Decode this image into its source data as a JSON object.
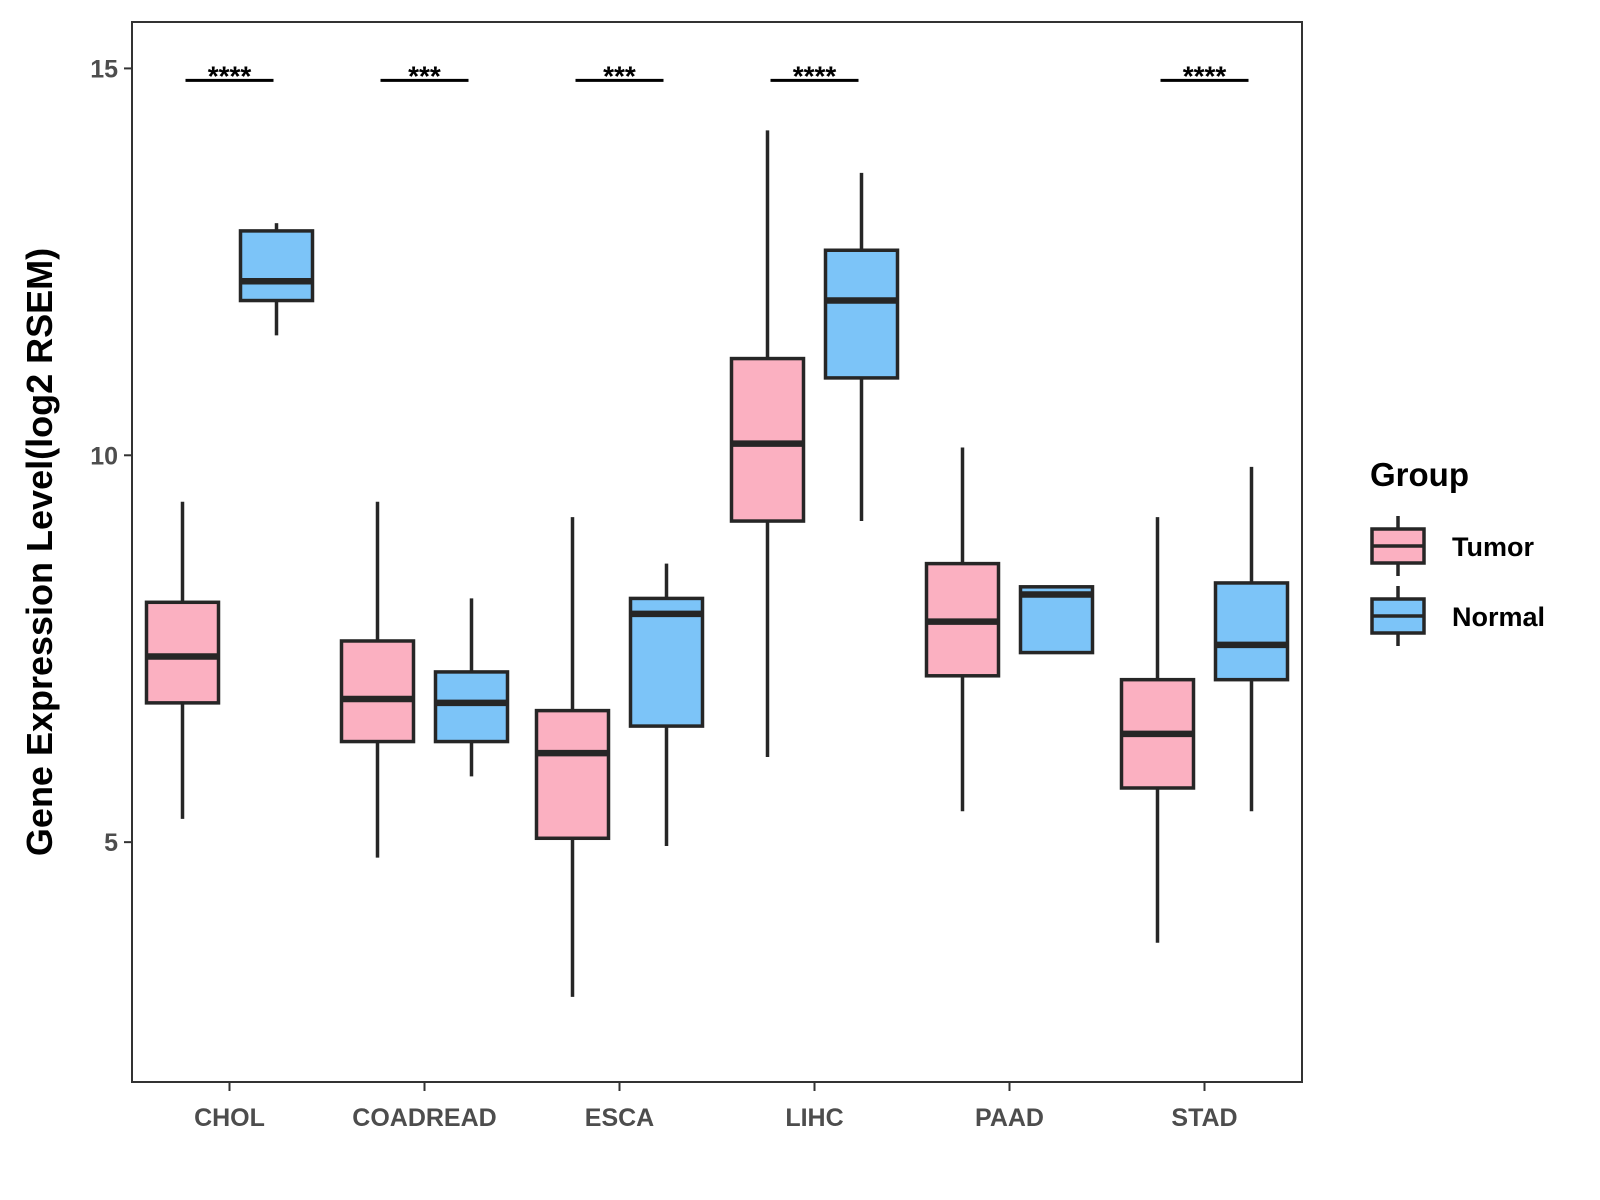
{
  "chart_data": {
    "type": "boxplot",
    "ylabel": "Gene Expression Level(log2 RSEM)",
    "xlabel": "",
    "ylim": [
      1.9,
      15.6
    ],
    "yticks": [
      5,
      10,
      15
    ],
    "categories": [
      "CHOL",
      "COADREAD",
      "ESCA",
      "LIHC",
      "PAAD",
      "STAD"
    ],
    "series": [
      {
        "name": "Tumor",
        "color": "#FBB0C1",
        "boxes": [
          {
            "min": 5.3,
            "q1": 6.8,
            "median": 7.4,
            "q3": 8.1,
            "max": 9.4
          },
          {
            "min": 4.8,
            "q1": 6.3,
            "median": 6.85,
            "q3": 7.6,
            "max": 9.4
          },
          {
            "min": 3.0,
            "q1": 5.05,
            "median": 6.15,
            "q3": 6.7,
            "max": 9.2
          },
          {
            "min": 6.1,
            "q1": 9.15,
            "median": 10.15,
            "q3": 11.25,
            "max": 14.2
          },
          {
            "min": 5.4,
            "q1": 7.15,
            "median": 7.85,
            "q3": 8.6,
            "max": 10.1
          },
          {
            "min": 3.7,
            "q1": 5.7,
            "median": 6.4,
            "q3": 7.1,
            "max": 9.2
          }
        ]
      },
      {
        "name": "Normal",
        "color": "#7CC4F8",
        "boxes": [
          {
            "min": 11.55,
            "q1": 12.0,
            "median": 12.25,
            "q3": 12.9,
            "max": 13.0
          },
          {
            "min": 5.85,
            "q1": 6.3,
            "median": 6.8,
            "q3": 7.2,
            "max": 8.15
          },
          {
            "min": 4.95,
            "q1": 6.5,
            "median": 7.95,
            "q3": 8.15,
            "max": 8.6
          },
          {
            "min": 9.15,
            "q1": 11.0,
            "median": 12.0,
            "q3": 12.65,
            "max": 13.65
          },
          {
            "min": 7.45,
            "q1": 7.45,
            "median": 8.2,
            "q3": 8.3,
            "max": 8.3
          },
          {
            "min": 5.4,
            "q1": 7.1,
            "median": 7.55,
            "q3": 8.35,
            "max": 9.85
          }
        ]
      }
    ],
    "significance": [
      "****",
      "***",
      "***",
      "****",
      "",
      "****"
    ],
    "legend": {
      "title": "Group",
      "position": "right",
      "entries": [
        "Tumor",
        "Normal"
      ]
    },
    "grid": false
  }
}
